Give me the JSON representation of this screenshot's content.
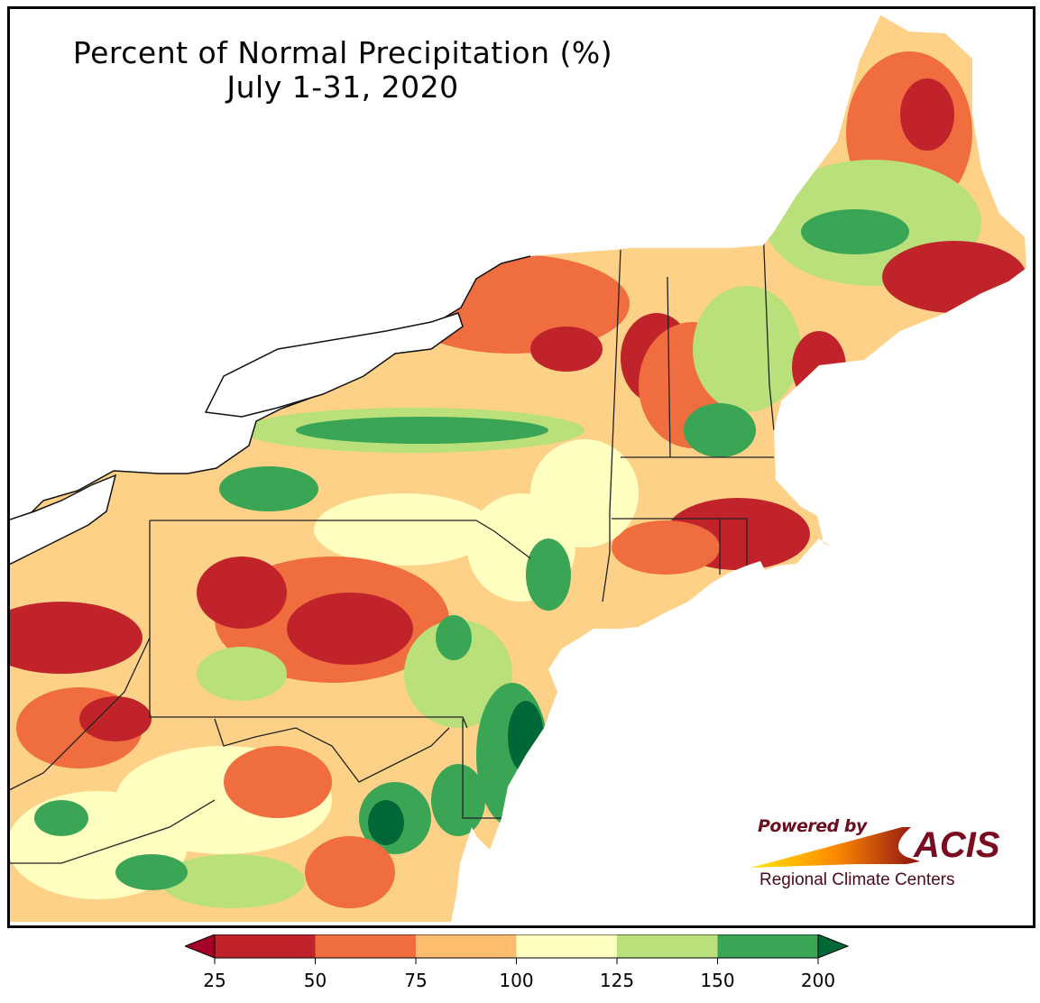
{
  "title": {
    "line1": "Percent of Normal Precipitation (%)",
    "line2": "July 1-31, 2020"
  },
  "logo": {
    "powered_by": "Powered by",
    "brand": "ACIS",
    "tagline": "Regional Climate Centers"
  },
  "legend": {
    "ticks": [
      "25",
      "50",
      "75",
      "100",
      "125",
      "150",
      "200"
    ],
    "colors": [
      "#c0242a",
      "#ef6d3f",
      "#fcbe6e",
      "#ffffc0",
      "#b9e07b",
      "#3aa655"
    ],
    "low_extend_color": "#a50026",
    "high_extend_color": "#006837"
  }
}
